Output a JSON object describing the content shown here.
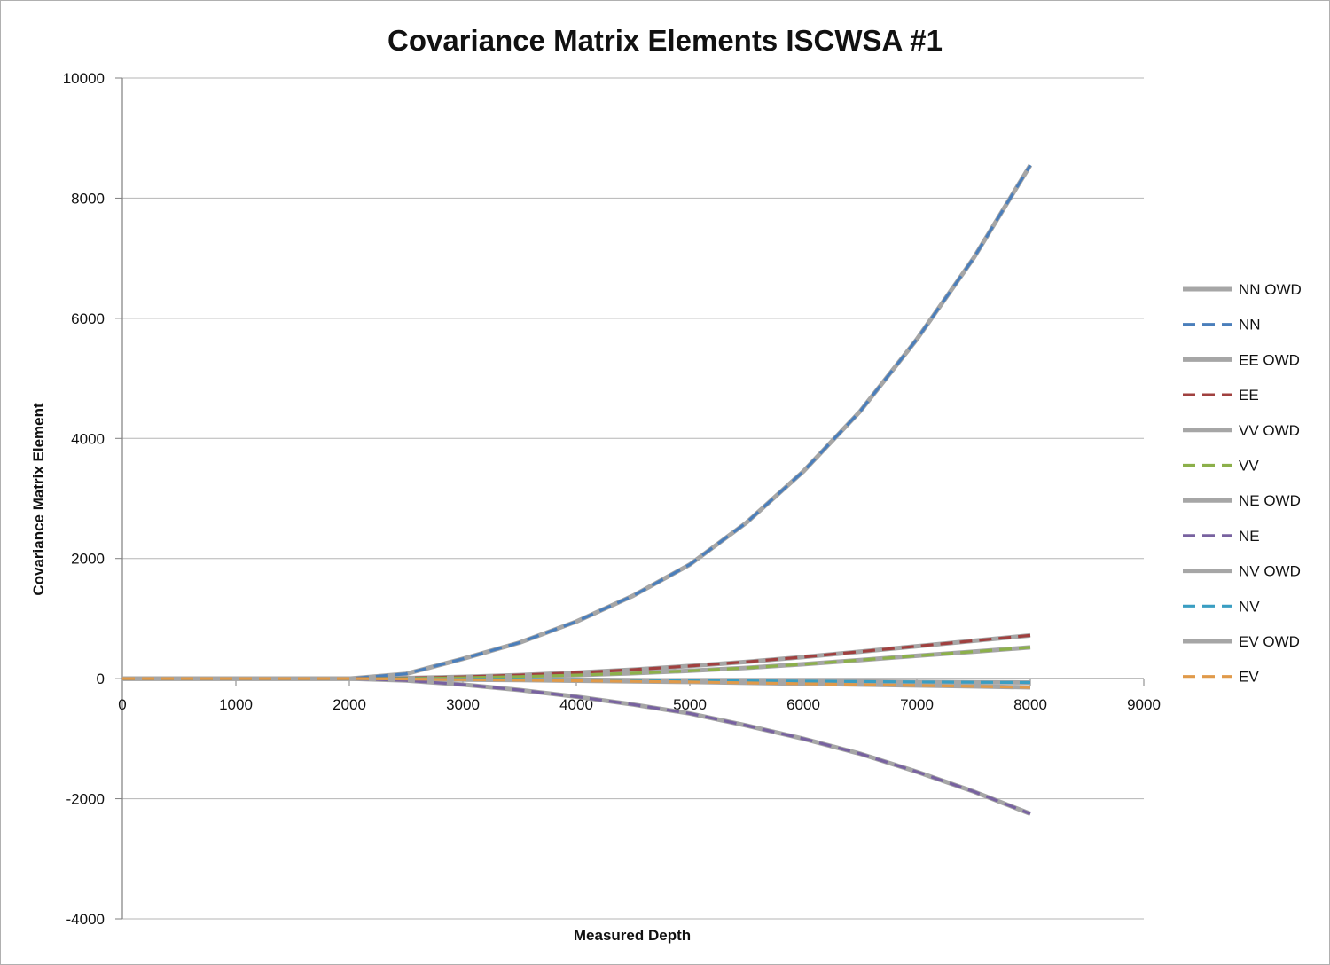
{
  "chart_data": {
    "type": "line",
    "title": "Covariance Matrix Elements ISCWSA #1",
    "xlabel": "Measured Depth",
    "ylabel": "Covariance Matrix Element",
    "xlim": [
      0,
      9000
    ],
    "ylim": [
      -4000,
      10000
    ],
    "xticks": [
      "0",
      "1000",
      "2000",
      "3000",
      "4000",
      "5000",
      "6000",
      "7000",
      "8000",
      "9000"
    ],
    "yticks": [
      "10000",
      "8000",
      "6000",
      "4000",
      "2000",
      "0",
      "-2000",
      "-4000"
    ],
    "grid": "horizontal",
    "legend_position": "right",
    "x": [
      0,
      500,
      1000,
      1500,
      2000,
      2500,
      3000,
      3500,
      4000,
      4500,
      5000,
      5500,
      6000,
      6500,
      7000,
      7500,
      8000
    ],
    "series": [
      {
        "name": "NN OWD",
        "color": "#a6a6a6",
        "style": "solid",
        "values": [
          0,
          0,
          0,
          0,
          0,
          80,
          330,
          600,
          950,
          1380,
          1900,
          2600,
          3450,
          4450,
          5650,
          7000,
          8550
        ]
      },
      {
        "name": "NN",
        "color": "#4a7ebb",
        "style": "dashed",
        "values": [
          0,
          0,
          0,
          0,
          0,
          80,
          330,
          600,
          950,
          1380,
          1900,
          2600,
          3450,
          4450,
          5650,
          7000,
          8550
        ]
      },
      {
        "name": "EE OWD",
        "color": "#a6a6a6",
        "style": "solid",
        "values": [
          0,
          0,
          0,
          0,
          0,
          10,
          30,
          60,
          100,
          150,
          210,
          280,
          360,
          450,
          540,
          630,
          720
        ]
      },
      {
        "name": "EE",
        "color": "#a0403f",
        "style": "dashed",
        "values": [
          0,
          0,
          0,
          0,
          0,
          10,
          30,
          60,
          100,
          150,
          210,
          280,
          360,
          450,
          540,
          630,
          720
        ]
      },
      {
        "name": "VV OWD",
        "color": "#a6a6a6",
        "style": "solid",
        "values": [
          0,
          0,
          0,
          0,
          0,
          5,
          15,
          35,
          60,
          90,
          130,
          180,
          240,
          310,
          380,
          450,
          520
        ]
      },
      {
        "name": "VV",
        "color": "#8cb04a",
        "style": "dashed",
        "values": [
          0,
          0,
          0,
          0,
          0,
          5,
          15,
          35,
          60,
          90,
          130,
          180,
          240,
          310,
          380,
          450,
          520
        ]
      },
      {
        "name": "NE OWD",
        "color": "#a6a6a6",
        "style": "solid",
        "values": [
          0,
          0,
          0,
          0,
          0,
          -30,
          -100,
          -190,
          -300,
          -430,
          -580,
          -780,
          -1000,
          -1250,
          -1550,
          -1880,
          -2250
        ]
      },
      {
        "name": "NE",
        "color": "#7862a0",
        "style": "dashed",
        "values": [
          0,
          0,
          0,
          0,
          0,
          -30,
          -100,
          -190,
          -300,
          -430,
          -580,
          -780,
          -1000,
          -1250,
          -1550,
          -1880,
          -2250
        ]
      },
      {
        "name": "NV OWD",
        "color": "#a6a6a6",
        "style": "solid",
        "values": [
          0,
          0,
          0,
          0,
          0,
          -3,
          -8,
          -12,
          -18,
          -24,
          -30,
          -36,
          -42,
          -48,
          -55,
          -60,
          -65
        ]
      },
      {
        "name": "NV",
        "color": "#3a9ec2",
        "style": "dashed",
        "values": [
          0,
          0,
          0,
          0,
          0,
          -3,
          -8,
          -12,
          -18,
          -24,
          -30,
          -36,
          -42,
          -48,
          -55,
          -60,
          -65
        ]
      },
      {
        "name": "EV OWD",
        "color": "#a6a6a6",
        "style": "solid",
        "values": [
          0,
          0,
          0,
          0,
          0,
          -5,
          -15,
          -25,
          -35,
          -45,
          -55,
          -70,
          -85,
          -100,
          -115,
          -130,
          -145
        ]
      },
      {
        "name": "EV",
        "color": "#e09a4a",
        "style": "dashed",
        "values": [
          0,
          0,
          0,
          0,
          0,
          -5,
          -15,
          -25,
          -35,
          -45,
          -55,
          -70,
          -85,
          -100,
          -115,
          -130,
          -145
        ]
      }
    ]
  }
}
